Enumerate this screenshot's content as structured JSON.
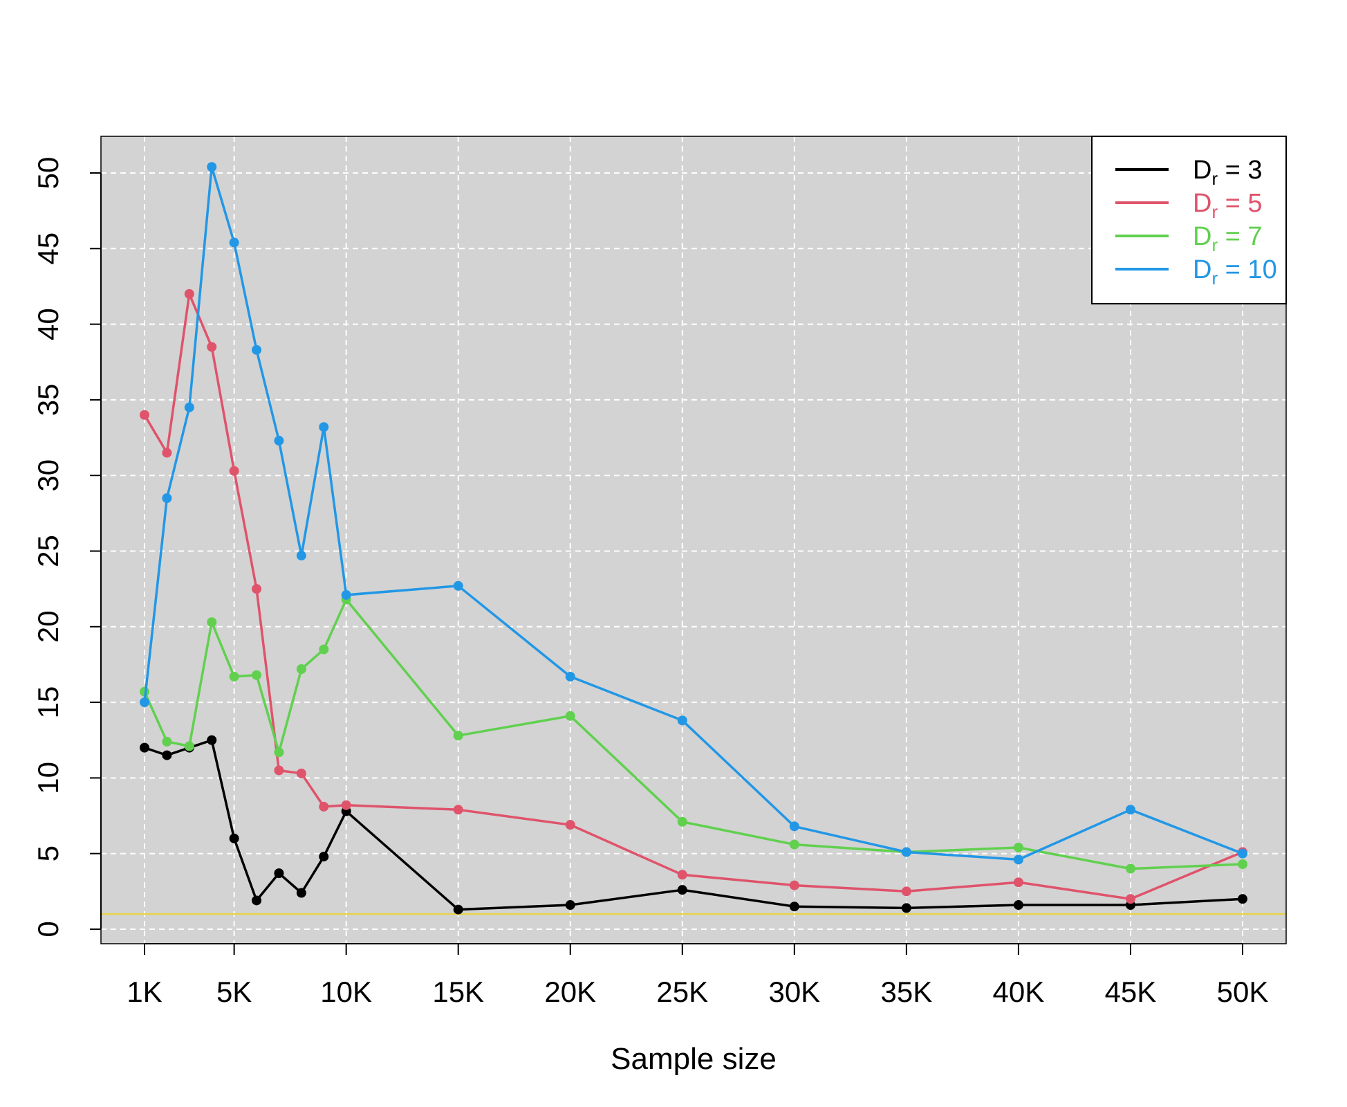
{
  "chart_data": {
    "type": "line",
    "xlabel": "Sample size",
    "ylabel": "",
    "xlim": [
      0,
      51000
    ],
    "ylim": [
      -1,
      52.5
    ],
    "grid": true,
    "x_ticks": [
      {
        "value": 1000,
        "label": "1K"
      },
      {
        "value": 5000,
        "label": "5K"
      },
      {
        "value": 10000,
        "label": "10K"
      },
      {
        "value": 15000,
        "label": "15K"
      },
      {
        "value": 20000,
        "label": "20K"
      },
      {
        "value": 25000,
        "label": "25K"
      },
      {
        "value": 30000,
        "label": "30K"
      },
      {
        "value": 35000,
        "label": "35K"
      },
      {
        "value": 40000,
        "label": "40K"
      },
      {
        "value": 45000,
        "label": "45K"
      },
      {
        "value": 50000,
        "label": "50K"
      }
    ],
    "y_ticks": [
      {
        "value": 0,
        "label": "0"
      },
      {
        "value": 5,
        "label": "5"
      },
      {
        "value": 10,
        "label": "10"
      },
      {
        "value": 15,
        "label": "15"
      },
      {
        "value": 20,
        "label": "20"
      },
      {
        "value": 25,
        "label": "25"
      },
      {
        "value": 30,
        "label": "30"
      },
      {
        "value": 35,
        "label": "35"
      },
      {
        "value": 40,
        "label": "40"
      },
      {
        "value": 45,
        "label": "45"
      },
      {
        "value": 50,
        "label": "50"
      }
    ],
    "x": [
      1000,
      2000,
      3000,
      4000,
      5000,
      6000,
      7000,
      8000,
      9000,
      10000,
      15000,
      20000,
      25000,
      30000,
      35000,
      40000,
      45000,
      50000
    ],
    "series": [
      {
        "name_main": "D",
        "name_sub": "r",
        "name_rest": " = 3",
        "color": "#000000",
        "values": [
          12.0,
          11.5,
          12.0,
          12.5,
          6.0,
          1.9,
          3.7,
          2.4,
          4.8,
          7.8,
          1.3,
          1.6,
          2.6,
          1.5,
          1.4,
          1.6,
          1.6,
          2.0
        ]
      },
      {
        "name_main": "D",
        "name_sub": "r",
        "name_rest": " = 5",
        "color": "#DF536B",
        "values": [
          34.0,
          31.5,
          42.0,
          38.5,
          30.3,
          22.5,
          10.5,
          10.3,
          8.1,
          8.2,
          7.9,
          6.9,
          3.6,
          2.9,
          2.5,
          3.1,
          2.0,
          5.1
        ]
      },
      {
        "name_main": "D",
        "name_sub": "r",
        "name_rest": " = 7",
        "color": "#61D04F",
        "values": [
          15.7,
          12.4,
          12.1,
          20.3,
          16.7,
          16.8,
          11.7,
          17.2,
          18.5,
          21.8,
          12.8,
          14.1,
          7.1,
          5.6,
          5.1,
          5.4,
          4.0,
          4.3
        ]
      },
      {
        "name_main": "D",
        "name_sub": "r",
        "name_rest": " = 10",
        "color": "#2297E6",
        "values": [
          15.0,
          28.5,
          34.5,
          50.4,
          45.4,
          38.3,
          32.3,
          24.7,
          33.2,
          22.1,
          22.7,
          16.7,
          13.8,
          6.8,
          5.1,
          4.6,
          7.9,
          5.0
        ]
      }
    ],
    "reference_line": {
      "y": 1,
      "color": "#E7D34A"
    },
    "legend_position": "top-right",
    "panel_background": "#D3D3D3"
  }
}
